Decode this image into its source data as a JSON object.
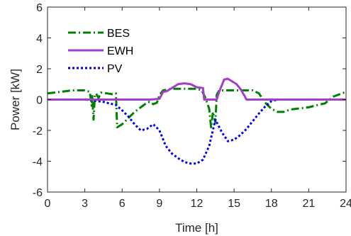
{
  "chart_data": {
    "type": "line",
    "xlabel": "Time [h]",
    "ylabel": "Power [kW]",
    "xlim": [
      0,
      24
    ],
    "ylim": [
      -6,
      6
    ],
    "xticks": [
      0,
      3,
      6,
      9,
      12,
      15,
      18,
      21,
      24
    ],
    "yticks": [
      -6,
      -4,
      -2,
      0,
      2,
      4,
      6
    ],
    "grid": false,
    "legend_position": "top-left",
    "series": [
      {
        "name": "BES",
        "color": "#008000",
        "style": "dash-dot",
        "points": [
          [
            0,
            0.4
          ],
          [
            1,
            0.5
          ],
          [
            2,
            0.6
          ],
          [
            3,
            0.6
          ],
          [
            3.4,
            0.5
          ],
          [
            3.55,
            -0.4
          ],
          [
            3.6,
            0.3
          ],
          [
            3.7,
            -1.3
          ],
          [
            3.8,
            0.2
          ],
          [
            3.9,
            0.4
          ],
          [
            4.1,
            0.1
          ],
          [
            4.3,
            0.45
          ],
          [
            4.8,
            0.4
          ],
          [
            5.2,
            0.35
          ],
          [
            5.5,
            0.4
          ],
          [
            5.6,
            -1.8
          ],
          [
            6,
            -1.6
          ],
          [
            6.5,
            -1.2
          ],
          [
            7,
            -0.8
          ],
          [
            7.5,
            -0.5
          ],
          [
            8,
            -0.2
          ],
          [
            8.2,
            -0.15
          ],
          [
            8.5,
            -0.3
          ],
          [
            8.8,
            -0.2
          ],
          [
            9,
            0.3
          ],
          [
            9.3,
            0.6
          ],
          [
            10,
            0.7
          ],
          [
            11,
            0.7
          ],
          [
            12,
            0.7
          ],
          [
            12.4,
            0.6
          ],
          [
            12.7,
            0.1
          ],
          [
            13,
            -0.6
          ],
          [
            13.15,
            -1.8
          ],
          [
            13.3,
            -0.8
          ],
          [
            13.5,
            -1.5
          ],
          [
            13.6,
            0.3
          ],
          [
            13.8,
            0.6
          ],
          [
            14.5,
            0.6
          ],
          [
            15.5,
            0.6
          ],
          [
            16.5,
            0.6
          ],
          [
            17,
            0.4
          ],
          [
            17.5,
            -0.2
          ],
          [
            18,
            -0.6
          ],
          [
            18.5,
            -0.8
          ],
          [
            19,
            -0.8
          ],
          [
            19.5,
            -0.65
          ],
          [
            20,
            -0.6
          ],
          [
            20.5,
            -0.55
          ],
          [
            21,
            -0.5
          ],
          [
            22,
            -0.3
          ],
          [
            22.3,
            -0.25
          ],
          [
            22.6,
            -0.05
          ],
          [
            23,
            0.2
          ],
          [
            23.5,
            0.35
          ],
          [
            24,
            0.5
          ]
        ]
      },
      {
        "name": "EWH",
        "color": "#A23EC9",
        "style": "solid",
        "points": [
          [
            0,
            0
          ],
          [
            8.3,
            0
          ],
          [
            9.0,
            0.05
          ],
          [
            9.3,
            0.5
          ],
          [
            9.6,
            0.55
          ],
          [
            10.1,
            0.8
          ],
          [
            10.5,
            1.0
          ],
          [
            11.0,
            1.05
          ],
          [
            11.5,
            1.0
          ],
          [
            12.0,
            0.8
          ],
          [
            12.5,
            0.75
          ],
          [
            12.6,
            0
          ],
          [
            13.6,
            0
          ],
          [
            13.8,
            0.5
          ],
          [
            14.0,
            0.9
          ],
          [
            14.2,
            1.3
          ],
          [
            14.5,
            1.35
          ],
          [
            14.8,
            1.2
          ],
          [
            15.2,
            1.0
          ],
          [
            15.5,
            0.7
          ],
          [
            15.8,
            0.3
          ],
          [
            16.0,
            0
          ],
          [
            24,
            0
          ]
        ]
      },
      {
        "name": "PV",
        "color": "#0000EE",
        "style": "dotted",
        "points": [
          [
            0,
            0
          ],
          [
            3,
            0
          ],
          [
            3.5,
            -0.02
          ],
          [
            4.0,
            -0.1
          ],
          [
            4.5,
            -0.15
          ],
          [
            5.0,
            -0.25
          ],
          [
            5.5,
            -0.35
          ],
          [
            6.0,
            -0.7
          ],
          [
            6.5,
            -1.1
          ],
          [
            7.0,
            -1.6
          ],
          [
            7.5,
            -2.0
          ],
          [
            8.0,
            -1.9
          ],
          [
            8.5,
            -1.6
          ],
          [
            9.0,
            -2.0
          ],
          [
            9.5,
            -3.0
          ],
          [
            10.0,
            -3.5
          ],
          [
            10.5,
            -3.8
          ],
          [
            11.0,
            -4.05
          ],
          [
            11.5,
            -4.15
          ],
          [
            12.0,
            -4.15
          ],
          [
            12.5,
            -3.9
          ],
          [
            13.0,
            -3.0
          ],
          [
            13.5,
            -1.3
          ],
          [
            14.0,
            -2.1
          ],
          [
            14.5,
            -2.7
          ],
          [
            15.0,
            -2.6
          ],
          [
            15.5,
            -2.3
          ],
          [
            16.0,
            -1.9
          ],
          [
            16.5,
            -1.4
          ],
          [
            17.0,
            -0.9
          ],
          [
            17.5,
            -0.45
          ],
          [
            18.0,
            -0.1
          ],
          [
            18.5,
            0
          ],
          [
            24,
            0
          ]
        ]
      }
    ]
  }
}
